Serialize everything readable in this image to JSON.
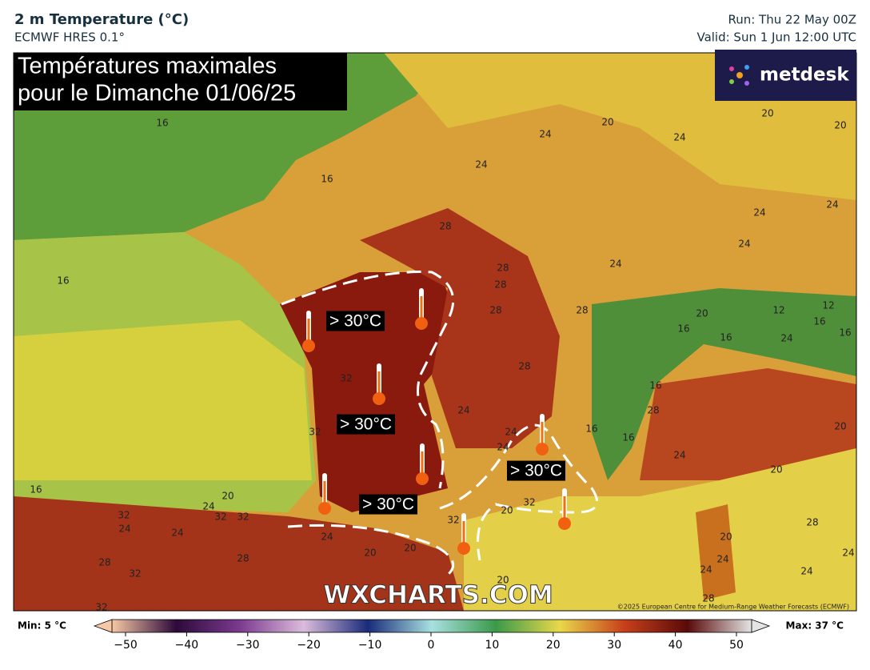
{
  "header": {
    "title": "2 m Temperature (°C)",
    "subtitle": "ECMWF HRES 0.1°",
    "run": "Run: Thu 22 May 00Z",
    "valid": "Valid: Sun 1 Jun 12:00 UTC"
  },
  "map": {
    "headline": [
      "Températures maximales",
      "pour le Dimanche 01/06/25"
    ],
    "logo": "metdesk",
    "watermark": "WXCHARTS.COM",
    "copyright": "©2025 European Centre for Medium-Range Weather Forecasts (ECMWF)",
    "annotations": [
      "> 30°C",
      "> 30°C",
      "> 30°C",
      "> 30°C"
    ],
    "contour_labels": [
      16,
      16,
      16,
      20,
      20,
      20,
      24,
      24,
      24,
      24,
      24,
      24,
      28,
      24,
      28,
      28,
      28,
      28,
      20,
      12,
      12,
      16,
      16,
      16,
      16,
      24,
      28,
      32,
      24,
      24,
      24,
      16,
      16,
      16,
      28,
      20,
      24,
      20,
      32,
      16,
      20,
      24,
      32,
      24,
      32,
      32,
      24,
      32,
      32,
      20,
      20,
      28,
      24,
      28,
      32,
      20,
      20,
      24,
      24,
      24,
      24,
      20,
      28,
      32,
      28
    ]
  },
  "colorbar": {
    "min_label": "Min: 5 °C",
    "max_label": "Max: 37 °C",
    "ticks": [
      {
        "value": -50,
        "label": "−50"
      },
      {
        "value": -40,
        "label": "−40"
      },
      {
        "value": -30,
        "label": "−30"
      },
      {
        "value": -20,
        "label": "−20"
      },
      {
        "value": -10,
        "label": "−10"
      },
      0,
      10,
      20,
      30,
      40,
      50
    ]
  }
}
